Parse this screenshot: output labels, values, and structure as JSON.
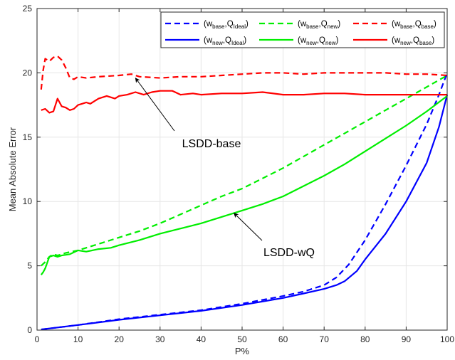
{
  "chart_data": {
    "type": "line",
    "xlabel": "P%",
    "ylabel": "Mean Absolute Error",
    "xlim": [
      0,
      100
    ],
    "ylim": [
      0,
      25
    ],
    "xticks": [
      0,
      10,
      20,
      30,
      40,
      50,
      60,
      70,
      80,
      90,
      100
    ],
    "yticks": [
      0,
      5,
      10,
      15,
      20,
      25
    ],
    "grid": true,
    "legend_position": "top-right",
    "series": [
      {
        "w": "base",
        "q": "Ideal",
        "color": "#0000ff",
        "dash": true,
        "x": [
          1,
          10,
          20,
          30,
          40,
          50,
          60,
          65,
          70,
          73,
          76,
          80,
          85,
          90,
          95,
          98,
          100
        ],
        "y": [
          0.05,
          0.4,
          0.85,
          1.2,
          1.55,
          2.05,
          2.65,
          3.0,
          3.5,
          4.1,
          5.1,
          7.0,
          9.8,
          12.8,
          16.0,
          18.3,
          20.0
        ]
      },
      {
        "w": "base",
        "q": "new",
        "color": "#00ee00",
        "dash": true,
        "x": [
          1,
          2,
          3,
          4,
          5,
          7,
          10,
          15,
          20,
          22,
          25,
          30,
          35,
          40,
          45,
          50,
          55,
          60,
          65,
          70,
          75,
          80,
          85,
          90,
          95,
          100
        ],
        "y": [
          5.0,
          5.3,
          5.7,
          5.9,
          5.8,
          6.0,
          6.2,
          6.7,
          7.2,
          7.4,
          7.7,
          8.3,
          9.0,
          9.7,
          10.4,
          11.0,
          11.8,
          12.6,
          13.5,
          14.4,
          15.3,
          16.2,
          17.1,
          18.0,
          18.9,
          19.8
        ]
      },
      {
        "w": "base",
        "q": "base",
        "color": "#ff0000",
        "dash": true,
        "x": [
          1,
          1.5,
          2,
          3,
          4,
          5,
          6,
          7,
          8,
          9,
          10,
          12,
          15,
          20,
          23,
          25,
          30,
          35,
          40,
          45,
          50,
          55,
          60,
          65,
          70,
          75,
          80,
          85,
          90,
          95,
          100
        ],
        "y": [
          18.7,
          20.2,
          21.1,
          20.9,
          21.2,
          21.3,
          21.0,
          20.4,
          19.6,
          19.5,
          19.7,
          19.6,
          19.7,
          19.8,
          19.9,
          19.7,
          19.6,
          19.7,
          19.7,
          19.8,
          19.9,
          20.0,
          20.0,
          19.9,
          20.0,
          20.0,
          20.0,
          20.0,
          19.9,
          19.9,
          19.8
        ]
      },
      {
        "w": "new",
        "q": "Ideal",
        "color": "#0000ff",
        "dash": false,
        "x": [
          1,
          10,
          20,
          30,
          40,
          50,
          60,
          65,
          70,
          73,
          75,
          78,
          80,
          85,
          90,
          95,
          98,
          100
        ],
        "y": [
          0.05,
          0.4,
          0.8,
          1.15,
          1.5,
          1.95,
          2.5,
          2.85,
          3.2,
          3.5,
          3.8,
          4.6,
          5.5,
          7.5,
          10.0,
          13.0,
          15.8,
          18.3
        ]
      },
      {
        "w": "new",
        "q": "new",
        "color": "#00ee00",
        "dash": false,
        "x": [
          1,
          1.5,
          2,
          3,
          4,
          5,
          6,
          8,
          10,
          12,
          15,
          18,
          20,
          25,
          30,
          35,
          40,
          45,
          50,
          55,
          60,
          65,
          70,
          75,
          80,
          85,
          90,
          95,
          100
        ],
        "y": [
          4.3,
          4.5,
          4.8,
          5.7,
          5.8,
          5.7,
          5.8,
          5.9,
          6.2,
          6.1,
          6.3,
          6.4,
          6.6,
          7.0,
          7.5,
          7.9,
          8.3,
          8.8,
          9.3,
          9.8,
          10.4,
          11.2,
          12.0,
          12.9,
          13.9,
          14.9,
          15.9,
          17.0,
          18.2
        ]
      },
      {
        "w": "new",
        "q": "base",
        "color": "#ff0000",
        "dash": false,
        "x": [
          1,
          2,
          3,
          4,
          5,
          6,
          7,
          8,
          9,
          10,
          11,
          12,
          13,
          14,
          15,
          17,
          19,
          20,
          22,
          24,
          26,
          28,
          30,
          33,
          35,
          38,
          40,
          45,
          50,
          55,
          60,
          65,
          70,
          75,
          80,
          85,
          90,
          95,
          100
        ],
        "y": [
          17.1,
          17.2,
          16.9,
          17.0,
          18.0,
          17.4,
          17.3,
          17.1,
          17.2,
          17.5,
          17.6,
          17.7,
          17.6,
          17.8,
          18.0,
          18.2,
          18.0,
          18.2,
          18.3,
          18.5,
          18.3,
          18.5,
          18.6,
          18.6,
          18.3,
          18.4,
          18.3,
          18.4,
          18.4,
          18.5,
          18.3,
          18.3,
          18.4,
          18.4,
          18.3,
          18.3,
          18.3,
          18.3,
          18.3
        ]
      }
    ],
    "annotations": [
      {
        "text": "LSDD-base",
        "arrow_to": [
          24,
          19.6
        ]
      },
      {
        "text": "LSDD-wQ",
        "arrow_to": [
          48,
          9.1
        ]
      }
    ]
  },
  "legend": {
    "w": "w",
    "q": "Q",
    "sep": ",",
    "open": "(",
    "close": ")"
  }
}
